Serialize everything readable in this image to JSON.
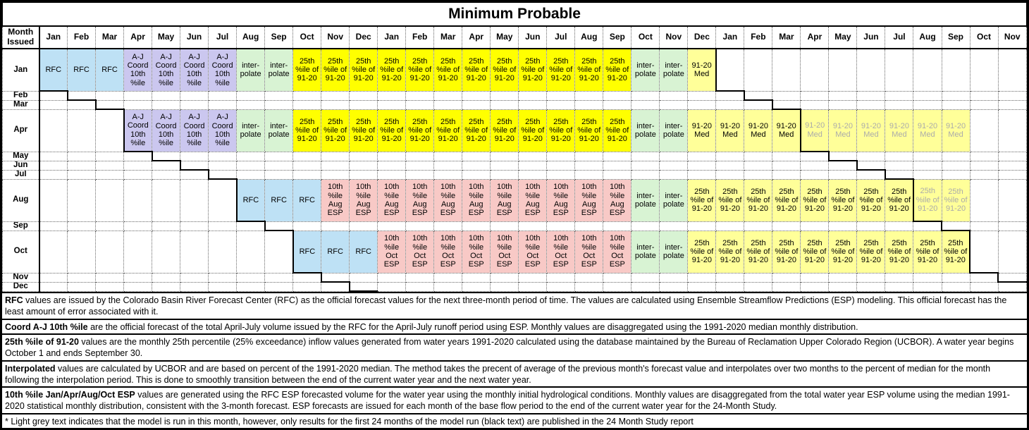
{
  "title": "Minimum Probable",
  "corner_label": "Month\nIssued",
  "month_columns": [
    "Jan",
    "Feb",
    "Mar",
    "Apr",
    "May",
    "Jun",
    "Jul",
    "Aug",
    "Sep",
    "Oct",
    "Nov",
    "Dec",
    "Jan",
    "Feb",
    "Mar",
    "Apr",
    "May",
    "Jun",
    "Jul",
    "Aug",
    "Sep",
    "Oct",
    "Nov",
    "Dec",
    "Jan",
    "Feb",
    "Mar",
    "Apr",
    "May",
    "Jun",
    "Jul",
    "Aug",
    "Sep",
    "Oct",
    "Nov"
  ],
  "cell_types": {
    "rfc": {
      "label": "RFC",
      "bg": "#BEE1F5"
    },
    "coord": {
      "label": "A-J Coord 10th %ile",
      "bg": "#CBC7EF"
    },
    "interp": {
      "label": "inter-\npolate",
      "bg": "#D8F3D3"
    },
    "p25": {
      "label": "25th %ile of 91-20",
      "bg": "#FFFF00"
    },
    "p25_pale": {
      "label": "25th %ile of 91-20",
      "bg": "#FFFF99"
    },
    "med": {
      "label": "91-20 Med",
      "bg": "#FFFF99"
    },
    "aug_esp": {
      "label": "10th %ile Aug ESP",
      "bg": "#F8C9C6"
    },
    "oct_esp": {
      "label": "10th %ile Oct ESP",
      "bg": "#F8C9C6"
    }
  },
  "rows": [
    {
      "label": "Jan",
      "tall": true,
      "segments": [
        {
          "from": 1,
          "to": 3,
          "type": "rfc"
        },
        {
          "from": 4,
          "to": 7,
          "type": "coord"
        },
        {
          "from": 8,
          "to": 9,
          "type": "interp"
        },
        {
          "from": 10,
          "to": 21,
          "type": "p25"
        },
        {
          "from": 22,
          "to": 23,
          "type": "interp"
        },
        {
          "from": 24,
          "to": 24,
          "type": "med"
        }
      ]
    },
    {
      "label": "Feb"
    },
    {
      "label": "Mar"
    },
    {
      "label": "Apr",
      "tall": true,
      "segments": [
        {
          "from": 4,
          "to": 7,
          "type": "coord"
        },
        {
          "from": 8,
          "to": 9,
          "type": "interp"
        },
        {
          "from": 10,
          "to": 21,
          "type": "p25"
        },
        {
          "from": 22,
          "to": 23,
          "type": "interp"
        },
        {
          "from": 24,
          "to": 27,
          "type": "med"
        },
        {
          "from": 28,
          "to": 33,
          "type": "med",
          "grey": true
        }
      ]
    },
    {
      "label": "May"
    },
    {
      "label": "Jun"
    },
    {
      "label": "Jul"
    },
    {
      "label": "Aug",
      "tall": true,
      "segments": [
        {
          "from": 8,
          "to": 10,
          "type": "rfc"
        },
        {
          "from": 11,
          "to": 21,
          "type": "aug_esp"
        },
        {
          "from": 22,
          "to": 23,
          "type": "interp"
        },
        {
          "from": 24,
          "to": 31,
          "type": "p25_pale"
        },
        {
          "from": 32,
          "to": 33,
          "type": "p25_pale",
          "grey": true
        }
      ]
    },
    {
      "label": "Sep"
    },
    {
      "label": "Oct",
      "tall": true,
      "segments": [
        {
          "from": 10,
          "to": 12,
          "type": "rfc"
        },
        {
          "from": 13,
          "to": 21,
          "type": "oct_esp"
        },
        {
          "from": 22,
          "to": 23,
          "type": "interp"
        },
        {
          "from": 24,
          "to": 33,
          "type": "p25_pale"
        }
      ]
    },
    {
      "label": "Nov"
    },
    {
      "label": "Dec"
    }
  ],
  "notes": [
    {
      "lead": "RFC",
      "text": " values are issued by the Colorado Basin River Forecast Center (RFC) as the official forecast values for the next three-month period of time.  The values are calculated using Ensemble Streamflow Predictions (ESP) modeling.  This official forecast has the least amount of error associated with it."
    },
    {
      "lead": "Coord A-J 10th %ile",
      "text": " are the official forecast of the total April-July volume issued by the RFC for the April-July runoff period using ESP.  Monthly values are disaggregated using the 1991-2020 median monthly distribution."
    },
    {
      "lead": "25th %ile of 91-20",
      "text": " values are the monthly 25th percentile (25% exceedance) inflow values generated from water years 1991-2020 calculated using the database maintained by the Bureau of Reclamation Upper Colorado Region (UCBOR).  A water year begins October 1 and ends September 30."
    },
    {
      "lead": "Interpolated",
      "text": " values are calculated by UCBOR and are based on percent of the 1991-2020 median.  The method takes the precent of average of the previous month's forecast value and interpolates over two months to the percent of median for the month following the interpolation period.  This is done to smoothly transition between the end of the current water year and the next water year."
    },
    {
      "lead": "10th %ile Jan/Apr/Aug/Oct ESP",
      "text": " values are generated using the RFC ESP forecasted volume for the water year using the monthly initial hydrological conditions.  Monthly values are disaggregated from the total water year ESP volume using the median 1991-2020 statistical monthly distribution, consistent with the 3-month forecast.  ESP forecasts are issued for each month of the base flow period to the end of the current water year for the 24-Month Study."
    },
    {
      "lead": "",
      "text": "* Light grey text indicates that the model is run in this month, however, only results for the first 24 months of the model run (black text) are published in the 24 Month Study report"
    }
  ],
  "colors": {
    "rfc_blue": "#BEE1F5",
    "coord_purple": "#CBC7EF",
    "interpolate_green": "#D8F3D3",
    "p25_yellow": "#FFFF00",
    "pale_yellow": "#FFFF99",
    "esp_pink": "#F8C9C6",
    "grey_text": "#ABABAB",
    "line_black": "#000000"
  }
}
